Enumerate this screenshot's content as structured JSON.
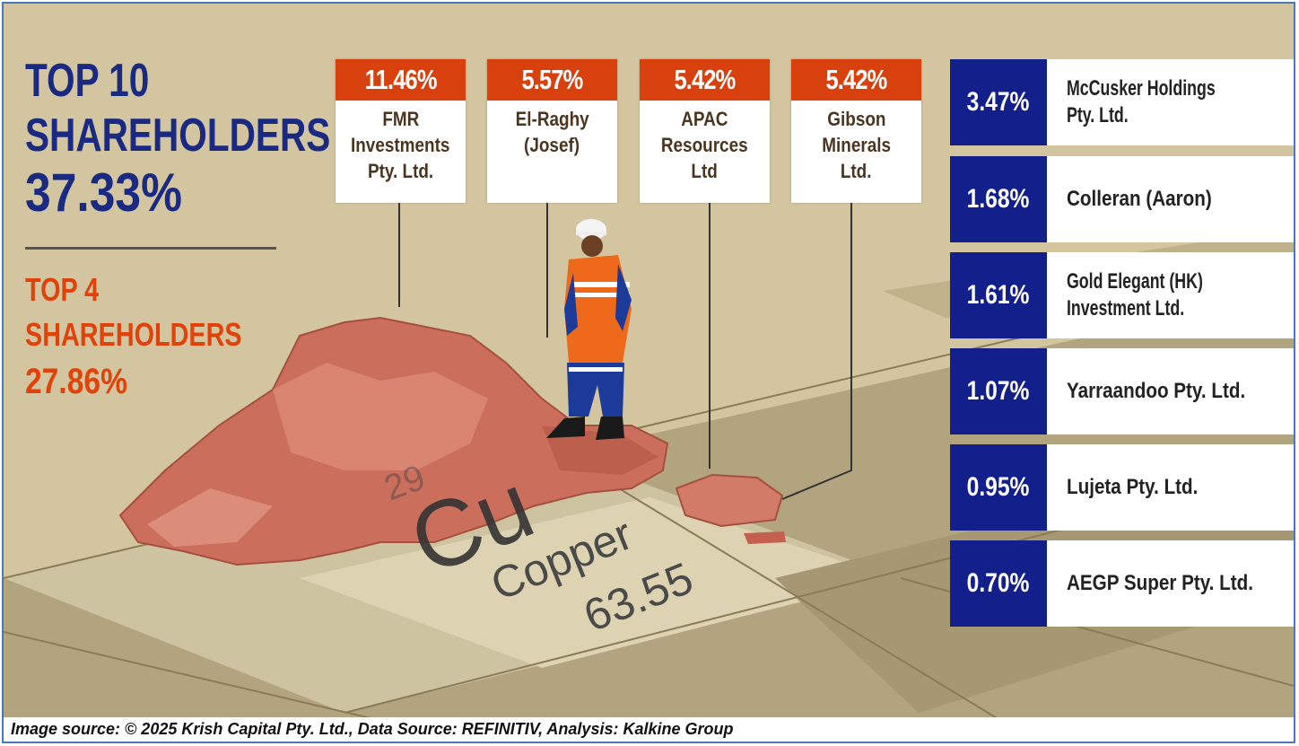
{
  "headline": {
    "top10_line1": "TOP 10",
    "top10_line2": "SHAREHOLDERS",
    "top10_pct": "37.33%",
    "top4_line1": "TOP 4",
    "top4_line2": "SHAREHOLDERS",
    "top4_pct": "27.86%"
  },
  "top_cards": [
    {
      "pct": "11.46%",
      "name": [
        "FMR",
        "Investments",
        "Pty. Ltd."
      ]
    },
    {
      "pct": "5.57%",
      "name": [
        "El-Raghy",
        "(Josef)"
      ]
    },
    {
      "pct": "5.42%",
      "name": [
        "APAC",
        "Resources",
        "Ltd"
      ]
    },
    {
      "pct": "5.42%",
      "name": [
        "Gibson",
        "Minerals",
        "Ltd."
      ]
    }
  ],
  "right_list": [
    {
      "pct": "3.47%",
      "name": [
        "McCusker Holdings",
        "Pty. Ltd."
      ]
    },
    {
      "pct": "1.68%",
      "name": [
        "Colleran (Aaron)"
      ]
    },
    {
      "pct": "1.61%",
      "name": [
        "Gold Elegant (HK)",
        "Investment Ltd."
      ]
    },
    {
      "pct": "1.07%",
      "name": [
        "Yarraandoo Pty. Ltd."
      ]
    },
    {
      "pct": "0.95%",
      "name": [
        "Lujeta Pty. Ltd."
      ]
    },
    {
      "pct": "0.70%",
      "name": [
        "AEGP Super Pty. Ltd."
      ]
    }
  ],
  "element_tile": {
    "number": "29",
    "symbol": "Cu",
    "name": "Copper",
    "mass": "63.55"
  },
  "footer": "Image source: © 2025 Krish Capital Pty. Ltd., Data Source: REFINITIV, Analysis: Kalkine Group",
  "colors": {
    "background": "#d2c59f",
    "accent_orange": "#d8410d",
    "accent_blue": "#131f8a"
  }
}
